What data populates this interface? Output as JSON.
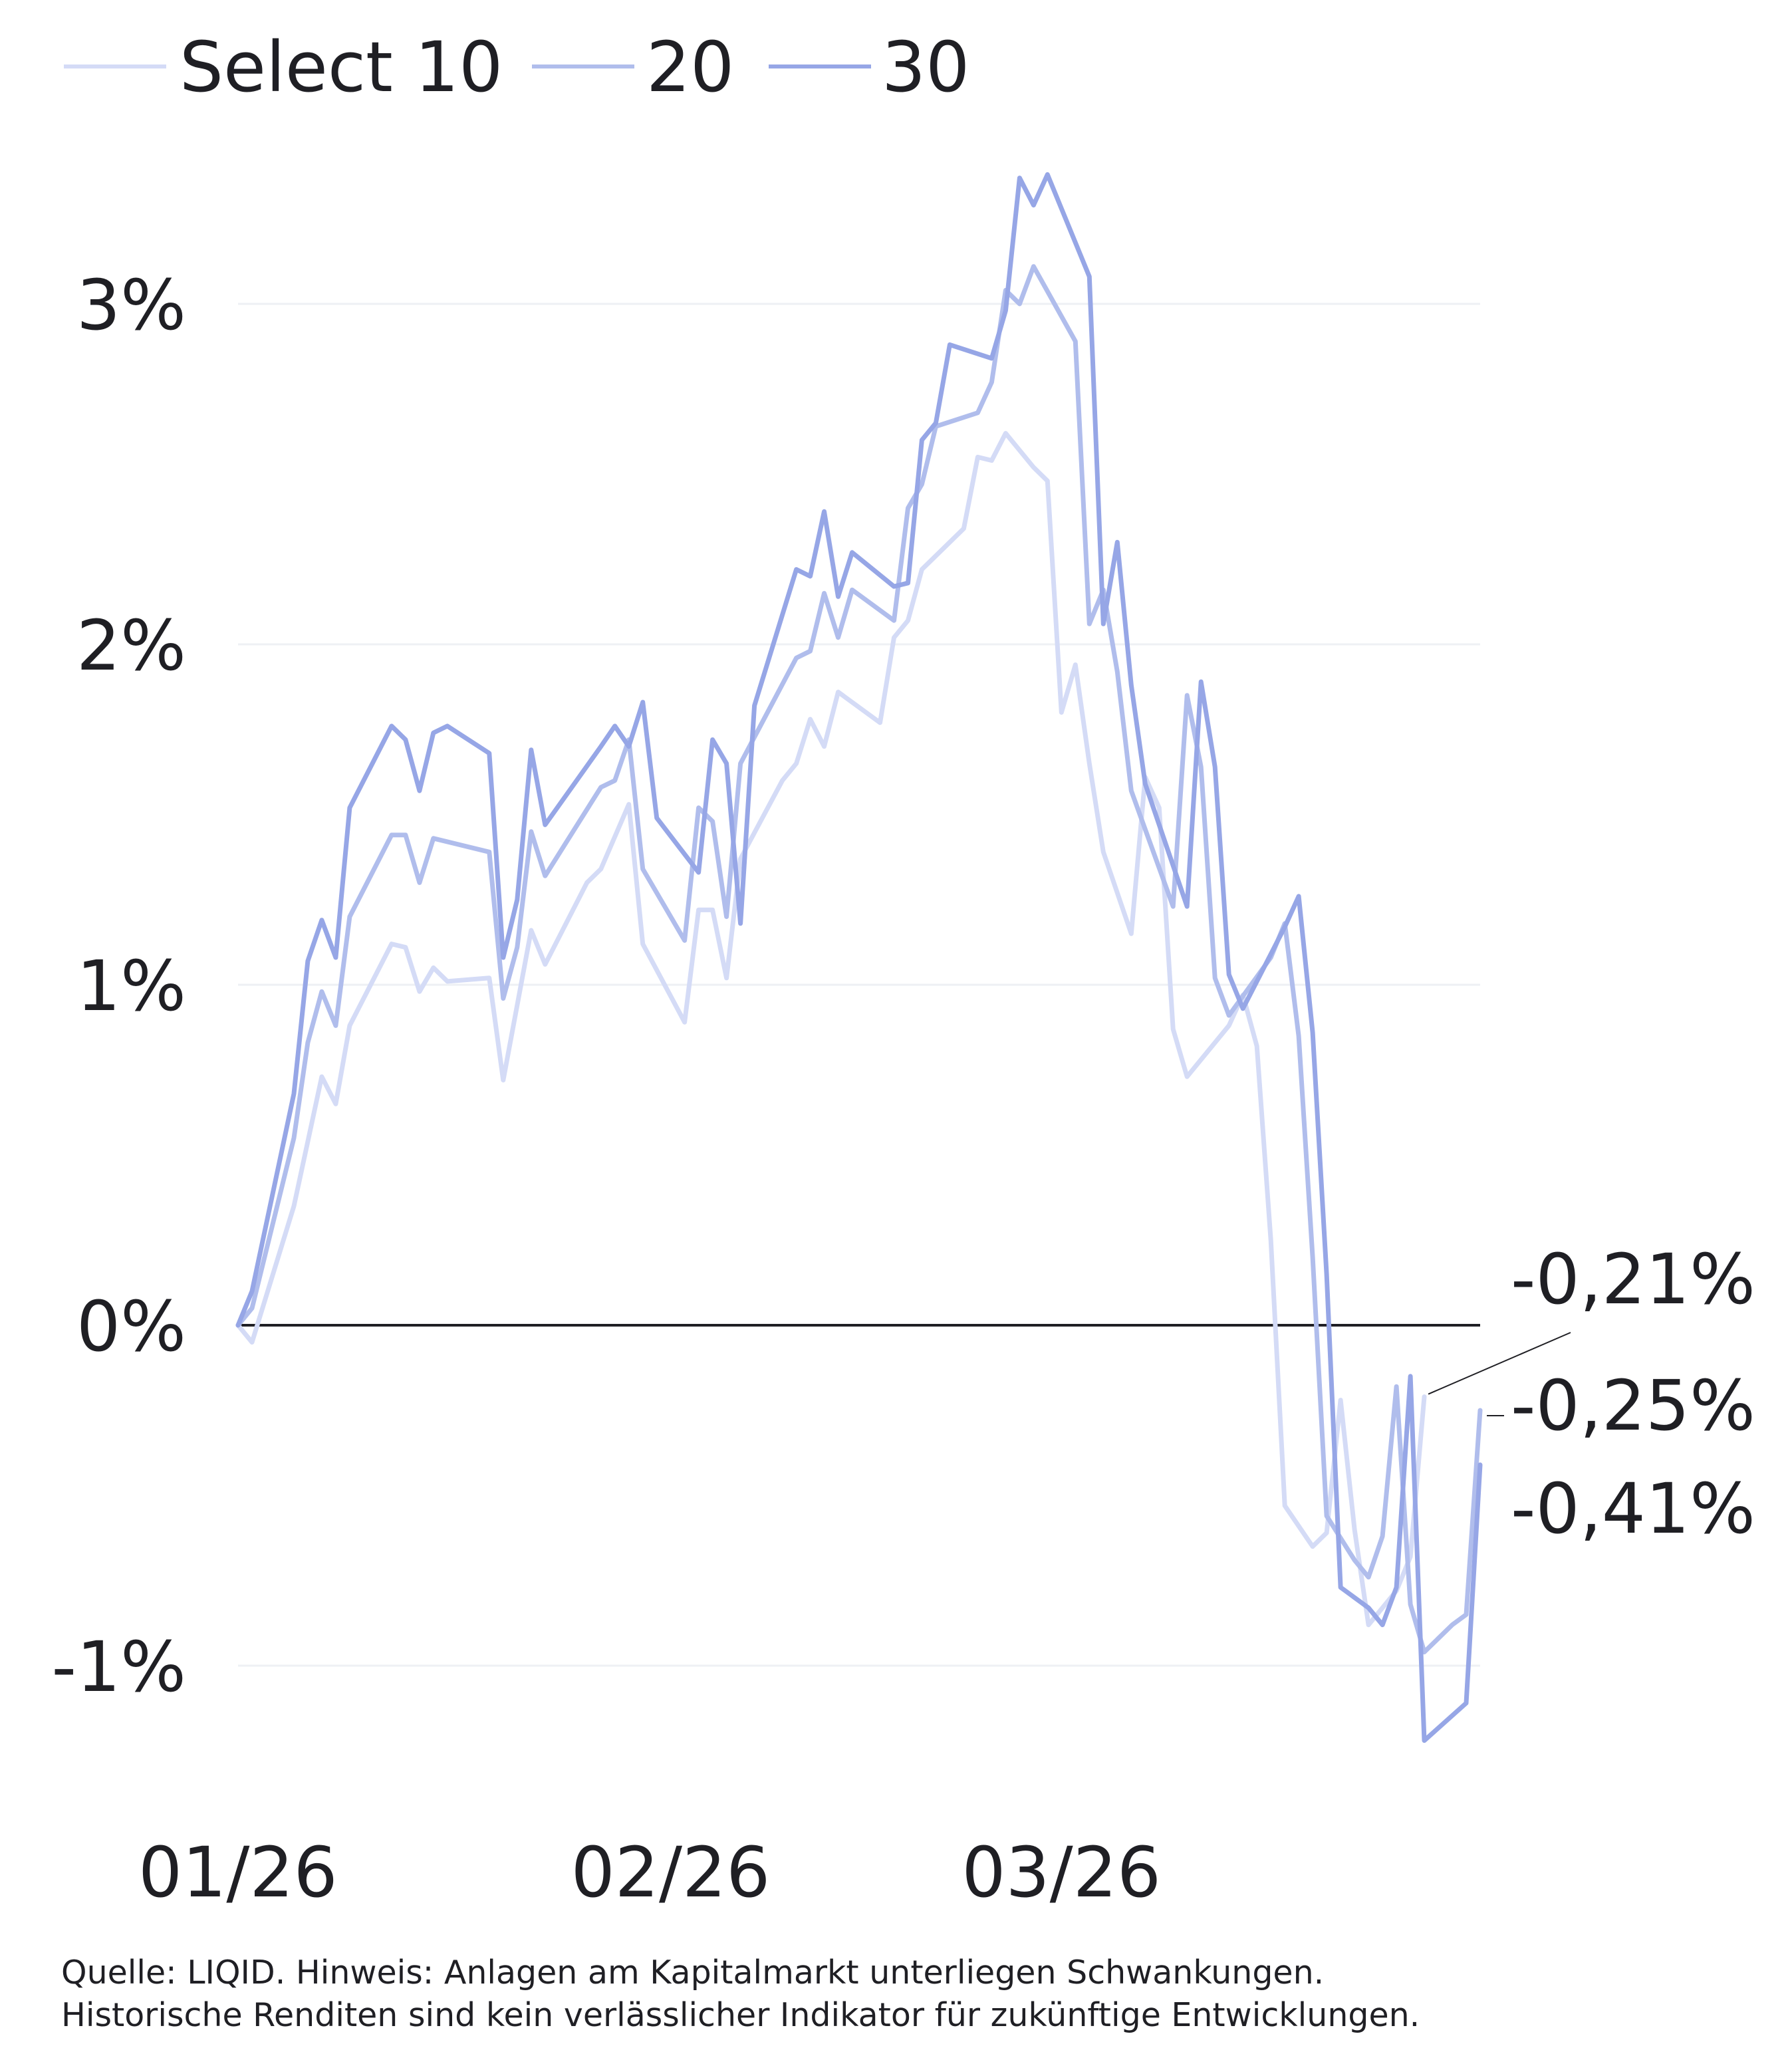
{
  "colors": {
    "Select 10": "#d4dbf6",
    "20": "#b0bdec",
    "30": "#96a6e6",
    "zero_line": "#1f1f24",
    "grid": "#eef0f4"
  },
  "footnote": {
    "line1": "Quelle: LIQID. Hinweis: Anlagen am Kapitalmarkt unterliegen Schwankungen.",
    "line2": "Historische Renditen sind kein verlässlicher Indikator für zukünftige Entwicklungen."
  },
  "chart_data": {
    "type": "line",
    "title": "",
    "xlabel": "",
    "ylabel": "",
    "x_ticks": [
      {
        "label": "01/26",
        "day": 0
      },
      {
        "label": "02/26",
        "day": 31
      },
      {
        "label": "03/26",
        "day": 59
      }
    ],
    "x_range": [
      0,
      89
    ],
    "y_ticks": [
      {
        "label": "3%",
        "value": 3
      },
      {
        "label": "2%",
        "value": 2
      },
      {
        "label": "1%",
        "value": 1
      },
      {
        "label": "0%",
        "value": 0
      },
      {
        "label": "-1%",
        "value": -1
      }
    ],
    "ylim": [
      -1.3,
      3.55
    ],
    "grid": true,
    "legend_position": "top-left",
    "end_labels": [
      "-0,21%",
      "-0,25%",
      "-0,41%"
    ],
    "series": [
      {
        "name": "Select 10",
        "points": [
          [
            0,
            0
          ],
          [
            1,
            -0.05
          ],
          [
            4,
            0.35
          ],
          [
            6,
            0.73
          ],
          [
            7,
            0.65
          ],
          [
            8,
            0.88
          ],
          [
            11,
            1.12
          ],
          [
            12,
            1.11
          ],
          [
            13,
            0.98
          ],
          [
            14,
            1.05
          ],
          [
            15,
            1.01
          ],
          [
            18,
            1.02
          ],
          [
            19,
            0.72
          ],
          [
            21,
            1.16
          ],
          [
            22,
            1.06
          ],
          [
            25,
            1.3
          ],
          [
            26,
            1.34
          ],
          [
            28,
            1.53
          ],
          [
            29,
            1.12
          ],
          [
            32,
            0.89
          ],
          [
            33,
            1.22
          ],
          [
            34,
            1.22
          ],
          [
            35,
            1.02
          ],
          [
            36,
            1.37
          ],
          [
            39,
            1.6
          ],
          [
            40,
            1.65
          ],
          [
            41,
            1.78
          ],
          [
            42,
            1.7
          ],
          [
            43,
            1.86
          ],
          [
            46,
            1.77
          ],
          [
            47,
            2.02
          ],
          [
            48,
            2.07
          ],
          [
            49,
            2.22
          ],
          [
            52,
            2.34
          ],
          [
            53,
            2.55
          ],
          [
            54,
            2.54
          ],
          [
            55,
            2.62
          ],
          [
            57,
            2.52
          ],
          [
            58,
            2.48
          ],
          [
            59,
            1.8
          ],
          [
            60,
            1.94
          ],
          [
            61,
            1.65
          ],
          [
            62,
            1.39
          ],
          [
            64,
            1.15
          ],
          [
            65,
            1.61
          ],
          [
            66,
            1.52
          ],
          [
            67,
            0.87
          ],
          [
            68,
            0.73
          ],
          [
            70,
            0.83
          ],
          [
            71,
            0.88
          ],
          [
            72,
            0.97
          ],
          [
            73,
            0.82
          ],
          [
            74,
            0.25
          ],
          [
            75,
            -0.53
          ],
          [
            77,
            -0.65
          ],
          [
            78,
            -0.61
          ],
          [
            79,
            -0.22
          ],
          [
            80,
            -0.6
          ],
          [
            81,
            -0.88
          ],
          [
            83,
            -0.78
          ],
          [
            84,
            -0.68
          ],
          [
            85,
            -0.21
          ]
        ]
      },
      {
        "name": "20",
        "points": [
          [
            0,
            0
          ],
          [
            1,
            0.05
          ],
          [
            4,
            0.55
          ],
          [
            5,
            0.83
          ],
          [
            6,
            0.98
          ],
          [
            7,
            0.88
          ],
          [
            8,
            1.2
          ],
          [
            11,
            1.44
          ],
          [
            12,
            1.44
          ],
          [
            13,
            1.3
          ],
          [
            14,
            1.43
          ],
          [
            18,
            1.39
          ],
          [
            19,
            0.96
          ],
          [
            20,
            1.11
          ],
          [
            21,
            1.45
          ],
          [
            22,
            1.32
          ],
          [
            26,
            1.58
          ],
          [
            27,
            1.6
          ],
          [
            28,
            1.72
          ],
          [
            29,
            1.34
          ],
          [
            32,
            1.13
          ],
          [
            33,
            1.52
          ],
          [
            34,
            1.48
          ],
          [
            35,
            1.2
          ],
          [
            36,
            1.65
          ],
          [
            40,
            1.96
          ],
          [
            41,
            1.98
          ],
          [
            42,
            2.15
          ],
          [
            43,
            2.02
          ],
          [
            44,
            2.16
          ],
          [
            47,
            2.07
          ],
          [
            48,
            2.4
          ],
          [
            49,
            2.47
          ],
          [
            50,
            2.64
          ],
          [
            53,
            2.68
          ],
          [
            54,
            2.77
          ],
          [
            55,
            3.04
          ],
          [
            56,
            3
          ],
          [
            57,
            3.11
          ],
          [
            60,
            2.89
          ],
          [
            61,
            2.06
          ],
          [
            62,
            2.16
          ],
          [
            63,
            1.92
          ],
          [
            64,
            1.57
          ],
          [
            67,
            1.23
          ],
          [
            68,
            1.85
          ],
          [
            69,
            1.64
          ],
          [
            70,
            1.02
          ],
          [
            71,
            0.91
          ],
          [
            74,
            1.08
          ],
          [
            75,
            1.18
          ],
          [
            76,
            0.85
          ],
          [
            77,
            0.2
          ],
          [
            78,
            -0.56
          ],
          [
            80,
            -0.69
          ],
          [
            81,
            -0.74
          ],
          [
            82,
            -0.62
          ],
          [
            83,
            -0.18
          ],
          [
            84,
            -0.82
          ],
          [
            85,
            -0.96
          ],
          [
            87,
            -0.88
          ],
          [
            88,
            -0.85
          ],
          [
            89,
            -0.25
          ]
        ]
      },
      {
        "name": "30",
        "points": [
          [
            0,
            0
          ],
          [
            1,
            0.1
          ],
          [
            4,
            0.68
          ],
          [
            5,
            1.07
          ],
          [
            6,
            1.19
          ],
          [
            7,
            1.08
          ],
          [
            8,
            1.52
          ],
          [
            11,
            1.76
          ],
          [
            12,
            1.72
          ],
          [
            13,
            1.57
          ],
          [
            14,
            1.74
          ],
          [
            15,
            1.76
          ],
          [
            18,
            1.68
          ],
          [
            19,
            1.08
          ],
          [
            20,
            1.25
          ],
          [
            21,
            1.69
          ],
          [
            22,
            1.47
          ],
          [
            26,
            1.7
          ],
          [
            27,
            1.76
          ],
          [
            28,
            1.7
          ],
          [
            29,
            1.83
          ],
          [
            30,
            1.49
          ],
          [
            33,
            1.33
          ],
          [
            34,
            1.72
          ],
          [
            35,
            1.65
          ],
          [
            36,
            1.18
          ],
          [
            37,
            1.82
          ],
          [
            40,
            2.22
          ],
          [
            41,
            2.2
          ],
          [
            42,
            2.39
          ],
          [
            43,
            2.14
          ],
          [
            44,
            2.27
          ],
          [
            47,
            2.17
          ],
          [
            48,
            2.18
          ],
          [
            49,
            2.6
          ],
          [
            50,
            2.65
          ],
          [
            51,
            2.88
          ],
          [
            54,
            2.84
          ],
          [
            55,
            2.98
          ],
          [
            56,
            3.37
          ],
          [
            57,
            3.29
          ],
          [
            58,
            3.38
          ],
          [
            61,
            3.08
          ],
          [
            62,
            2.06
          ],
          [
            63,
            2.3
          ],
          [
            64,
            1.88
          ],
          [
            65,
            1.59
          ],
          [
            68,
            1.23
          ],
          [
            69,
            1.89
          ],
          [
            70,
            1.64
          ],
          [
            71,
            1.03
          ],
          [
            72,
            0.93
          ],
          [
            75,
            1.17
          ],
          [
            76,
            1.26
          ],
          [
            77,
            0.86
          ],
          [
            78,
            0.15
          ],
          [
            79,
            -0.77
          ],
          [
            81,
            -0.83
          ],
          [
            82,
            -0.88
          ],
          [
            83,
            -0.77
          ],
          [
            84,
            -0.15
          ],
          [
            85,
            -1.22
          ],
          [
            88,
            -1.11
          ],
          [
            89,
            -0.41
          ]
        ]
      }
    ]
  }
}
